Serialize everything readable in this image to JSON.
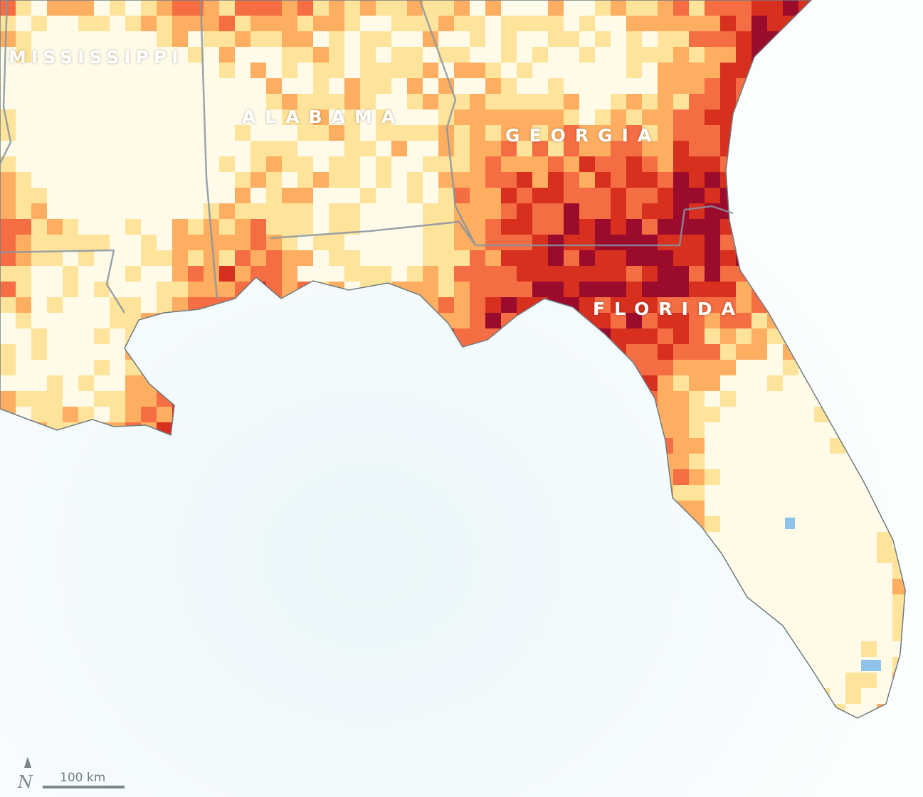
{
  "labels": {
    "mississippi": "MISSISSIPPI",
    "alabama": "ALABAMA",
    "georgia": "GEORGIA",
    "florida": "FLORIDA"
  },
  "scale": {
    "label": "100 km"
  },
  "north_arrow": {
    "icon": "north-arrow-icon"
  },
  "colors": {
    "water": "#f4fbfd",
    "severe": "#9b0b2c",
    "high": "#d7301f",
    "moderate": "#f46d43",
    "mild": "#fdae61",
    "low": "#fee39b",
    "none": "#fffbe8",
    "wet": "#8fc3ea",
    "border": "#7d8a96"
  }
}
